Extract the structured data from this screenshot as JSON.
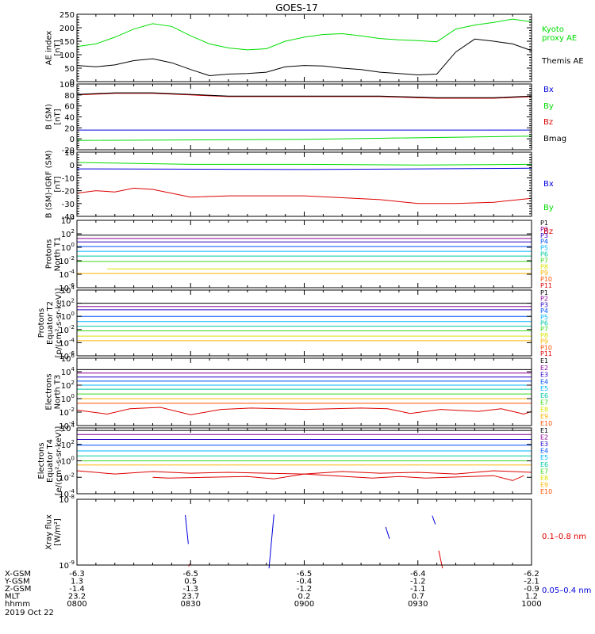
{
  "title": "GOES-17",
  "date_label": "2019 Oct 22",
  "colors": {
    "black": "#000000",
    "green": "#00dd00",
    "blue": "#0000dd",
    "red": "#dd0000",
    "p1": "#000000",
    "p2": "#8a0096",
    "p3": "#2a00c8",
    "p4": "#0050ff",
    "p5": "#00b4ff",
    "p6": "#00c8a0",
    "p7": "#38d81a",
    "p8": "#d8e400",
    "p9": "#ffb400",
    "p10": "#ff5000",
    "p11": "#dd0000"
  },
  "time_axis": {
    "ticks": [
      "0800",
      "0830",
      "0900",
      "0930",
      "1000"
    ]
  },
  "ephemeris": {
    "rows": [
      {
        "label": "X-GSM",
        "values": [
          "-6.3",
          "-6.5",
          "-6.5",
          "-6.4",
          "-6.2"
        ]
      },
      {
        "label": "Y-GSM",
        "values": [
          "1.3",
          "0.5",
          "-0.4",
          "-1.2",
          "-2.1"
        ]
      },
      {
        "label": "Z-GSM",
        "values": [
          "-1.4",
          "-1.3",
          "-1.2",
          "-1.1",
          "-0.9"
        ]
      },
      {
        "label": "MLT",
        "values": [
          "23.2",
          "23.7",
          "0.2",
          "0.7",
          "1.2"
        ]
      },
      {
        "label": "hhmm",
        "values": [
          "0800",
          "0830",
          "0900",
          "0930",
          "1000"
        ]
      }
    ]
  },
  "chart_data": [
    {
      "type": "line",
      "id": "ae",
      "ylabel": [
        "AE index",
        "[nT]"
      ],
      "ylim": [
        0,
        250
      ],
      "scale": "linear",
      "yticks": [
        0,
        50,
        100,
        150,
        200,
        250
      ],
      "series": [
        {
          "name": "Kyoto proxy AE",
          "color": "green",
          "x": [
            0,
            5,
            10,
            15,
            20,
            25,
            30,
            35,
            40,
            45,
            50,
            55,
            60,
            65,
            70,
            75,
            80,
            85,
            90,
            95,
            100,
            105,
            110,
            115,
            120
          ],
          "y": [
            130,
            140,
            165,
            195,
            215,
            205,
            170,
            140,
            125,
            118,
            122,
            150,
            165,
            175,
            178,
            170,
            160,
            155,
            152,
            148,
            195,
            210,
            220,
            232,
            222
          ]
        },
        {
          "name": "Themis AE",
          "color": "black",
          "x": [
            0,
            5,
            10,
            15,
            20,
            25,
            30,
            35,
            40,
            45,
            50,
            55,
            60,
            65,
            70,
            75,
            80,
            85,
            90,
            95,
            100,
            105,
            110,
            115,
            120
          ],
          "y": [
            60,
            55,
            62,
            78,
            85,
            70,
            45,
            22,
            28,
            30,
            35,
            55,
            60,
            58,
            50,
            45,
            35,
            30,
            25,
            28,
            110,
            158,
            150,
            140,
            115
          ]
        }
      ]
    },
    {
      "type": "line",
      "id": "bsm",
      "ylabel": [
        "B (SM)",
        "[nT]"
      ],
      "ylim": [
        -20,
        100
      ],
      "scale": "linear",
      "yticks": [
        -20,
        0,
        20,
        40,
        60,
        80,
        100
      ],
      "series": [
        {
          "name": "Bx",
          "color": "blue",
          "x": [
            0,
            60,
            120
          ],
          "y": [
            16,
            16,
            16
          ]
        },
        {
          "name": "By",
          "color": "green",
          "x": [
            0,
            60,
            120
          ],
          "y": [
            -3,
            -1,
            5
          ]
        },
        {
          "name": "Bz",
          "color": "red",
          "x": [
            0,
            10,
            20,
            30,
            40,
            60,
            80,
            95,
            110,
            120
          ],
          "y": [
            80,
            83,
            83,
            80,
            77,
            77,
            77,
            74,
            74,
            77
          ]
        },
        {
          "name": "Bmag",
          "color": "black",
          "x": [
            0,
            10,
            20,
            30,
            40,
            60,
            80,
            95,
            110,
            120
          ],
          "y": [
            81,
            84,
            84,
            81,
            78,
            78,
            78,
            75,
            75,
            78
          ]
        }
      ]
    },
    {
      "type": "line",
      "id": "bigrf",
      "ylabel": [
        "B (SM)-IGRF (SM)",
        "[nT]"
      ],
      "ylim": [
        -40,
        10
      ],
      "scale": "linear",
      "yticks": [
        -40,
        -30,
        -20,
        -10,
        0,
        10
      ],
      "series": [
        {
          "name": "Bx",
          "color": "blue",
          "x": [
            0,
            60,
            120
          ],
          "y": [
            -3,
            -3.5,
            -2.5
          ]
        },
        {
          "name": "By",
          "color": "green",
          "x": [
            0,
            30,
            60,
            90,
            120
          ],
          "y": [
            2,
            0.5,
            0.5,
            0,
            0.5
          ]
        },
        {
          "name": "Bz",
          "color": "red",
          "x": [
            0,
            5,
            10,
            15,
            20,
            30,
            40,
            60,
            80,
            90,
            100,
            110,
            120
          ],
          "y": [
            -22,
            -20,
            -21,
            -18,
            -19,
            -25,
            -24,
            -24,
            -27,
            -30,
            -30,
            -29,
            -26
          ]
        }
      ]
    },
    {
      "type": "line",
      "id": "protons_t1",
      "ylabel": [
        "Protons",
        "North T1"
      ],
      "ylim_exp": [
        -6,
        4
      ],
      "scale": "log",
      "ytick_exps": [
        -6,
        -4,
        -2,
        0,
        2,
        4
      ],
      "series": [
        {
          "name": "P1",
          "color": "p1",
          "x": [
            0,
            120
          ],
          "y_exp": [
            1.8,
            1.8
          ]
        },
        {
          "name": "P2",
          "color": "p2",
          "x": [
            0,
            120
          ],
          "y_exp": [
            1.3,
            1.3
          ]
        },
        {
          "name": "P3",
          "color": "p3",
          "x": [
            0,
            120
          ],
          "y_exp": [
            0.8,
            0.8
          ]
        },
        {
          "name": "P4",
          "color": "p4",
          "x": [
            0,
            120
          ],
          "y_exp": [
            0.1,
            0.1
          ]
        },
        {
          "name": "P5",
          "color": "p5",
          "x": [
            0,
            120
          ],
          "y_exp": [
            -0.6,
            -0.6
          ]
        },
        {
          "name": "P6",
          "color": "p6",
          "x": [
            0,
            120
          ],
          "y_exp": [
            -1.3,
            -1.3
          ]
        },
        {
          "name": "P7",
          "color": "p7",
          "x": [
            0,
            120
          ],
          "y_exp": [
            -2.1,
            -2.1
          ]
        },
        {
          "name": "P8",
          "color": "p8",
          "x": [
            8,
            120
          ],
          "y_exp": [
            -3.2,
            -3.2
          ]
        },
        {
          "name": "P9",
          "color": "p9",
          "x": [
            0,
            120
          ],
          "y_exp": [
            -3.9,
            -3.9
          ]
        }
      ],
      "legend": [
        "P1",
        "P2",
        "P3",
        "P4",
        "P5",
        "P6",
        "P7",
        "P8",
        "P9",
        "P10",
        "P11"
      ]
    },
    {
      "type": "line",
      "id": "protons_t2",
      "ylabel": [
        "Protons",
        "Equator T2",
        "[p/(cm²-s-sr-keV)]"
      ],
      "ylim_exp": [
        -6,
        4
      ],
      "scale": "log",
      "ytick_exps": [
        -6,
        -4,
        -2,
        0,
        2,
        4
      ],
      "series": [
        {
          "name": "P1",
          "color": "p1",
          "x": [
            0,
            120
          ],
          "y_exp": [
            2.0,
            2.0
          ]
        },
        {
          "name": "P2",
          "color": "p2",
          "x": [
            0,
            120
          ],
          "y_exp": [
            1.5,
            1.5
          ]
        },
        {
          "name": "P3",
          "color": "p3",
          "x": [
            0,
            120
          ],
          "y_exp": [
            1.0,
            1.0
          ]
        },
        {
          "name": "P4",
          "color": "p4",
          "x": [
            0,
            120
          ],
          "y_exp": [
            0.0,
            0.0
          ]
        },
        {
          "name": "P5",
          "color": "p5",
          "x": [
            0,
            120
          ],
          "y_exp": [
            -0.8,
            -0.8
          ]
        },
        {
          "name": "P6",
          "color": "p6",
          "x": [
            0,
            120
          ],
          "y_exp": [
            -1.5,
            -1.5
          ]
        },
        {
          "name": "P7",
          "color": "p7",
          "x": [
            0,
            120
          ],
          "y_exp": [
            -2.2,
            -2.2
          ]
        },
        {
          "name": "P8",
          "color": "p8",
          "x": [
            0,
            120
          ],
          "y_exp": [
            -3.0,
            -3.0
          ]
        },
        {
          "name": "P9",
          "color": "p9",
          "x": [
            0,
            120
          ],
          "y_exp": [
            -3.7,
            -3.7
          ]
        }
      ],
      "legend": [
        "P1",
        "P2",
        "P3",
        "P4",
        "P5",
        "P6",
        "P7",
        "P8",
        "P9",
        "P10",
        "P11"
      ]
    },
    {
      "type": "line",
      "id": "electrons_t3",
      "ylabel": [
        "Electrons",
        "North T3"
      ],
      "ylim_exp": [
        -4,
        6
      ],
      "scale": "log",
      "ytick_exps": [
        -4,
        -2,
        0,
        2,
        4,
        6
      ],
      "series": [
        {
          "name": "E1",
          "color": "p1",
          "x": [
            0,
            120
          ],
          "y_exp": [
            4.3,
            4.3
          ]
        },
        {
          "name": "E2",
          "color": "p2",
          "x": [
            0,
            120
          ],
          "y_exp": [
            3.8,
            3.8
          ]
        },
        {
          "name": "E3",
          "color": "p3",
          "x": [
            0,
            120
          ],
          "y_exp": [
            3.2,
            3.2
          ]
        },
        {
          "name": "E4",
          "color": "p4",
          "x": [
            0,
            120
          ],
          "y_exp": [
            2.6,
            2.6
          ]
        },
        {
          "name": "E5",
          "color": "p5",
          "x": [
            0,
            120
          ],
          "y_exp": [
            2.0,
            2.0
          ]
        },
        {
          "name": "E6",
          "color": "p6",
          "x": [
            0,
            120
          ],
          "y_exp": [
            1.4,
            1.4
          ]
        },
        {
          "name": "E7",
          "color": "p7",
          "x": [
            0,
            120
          ],
          "y_exp": [
            0.7,
            0.7
          ]
        },
        {
          "name": "E8",
          "color": "p9",
          "x": [
            0,
            120
          ],
          "y_exp": [
            0.0,
            0.0
          ]
        },
        {
          "name": "E9",
          "color": "p10",
          "x": [
            0,
            120
          ],
          "y_exp": [
            -0.7,
            -0.7
          ]
        },
        {
          "name": "E10",
          "color": "p11",
          "x": [
            0,
            8,
            14,
            22,
            30,
            38,
            46,
            60,
            75,
            82,
            88,
            96,
            106,
            112,
            118,
            120
          ],
          "y_exp": [
            -1.7,
            -2.3,
            -1.5,
            -1.3,
            -2.4,
            -1.6,
            -1.4,
            -1.6,
            -1.4,
            -1.5,
            -2.2,
            -1.6,
            -1.9,
            -1.5,
            -2.3,
            -1.9
          ]
        }
      ],
      "legend": [
        "E1",
        "E2",
        "E3",
        "E4",
        "E5",
        "E6",
        "E7",
        "E8",
        "E9",
        "E10"
      ]
    },
    {
      "type": "line",
      "id": "electrons_t4",
      "ylabel": [
        "Electrons",
        "Equator T4",
        "[e/(cm²-s-sr-keV)]"
      ],
      "ylim_exp": [
        -4,
        4
      ],
      "scale": "log",
      "ytick_exps": [
        -4,
        -2,
        0,
        2,
        4
      ],
      "series": [
        {
          "name": "E1",
          "color": "p1",
          "x": [
            0,
            120
          ],
          "y_exp": [
            3.7,
            3.7
          ]
        },
        {
          "name": "E2",
          "color": "p2",
          "x": [
            0,
            120
          ],
          "y_exp": [
            3.2,
            3.2
          ]
        },
        {
          "name": "E3",
          "color": "p3",
          "x": [
            0,
            120
          ],
          "y_exp": [
            2.6,
            2.6
          ]
        },
        {
          "name": "E4",
          "color": "p4",
          "x": [
            0,
            120
          ],
          "y_exp": [
            1.9,
            1.9
          ]
        },
        {
          "name": "E5",
          "color": "p5",
          "x": [
            0,
            120
          ],
          "y_exp": [
            1.2,
            1.2
          ]
        },
        {
          "name": "E6",
          "color": "p6",
          "x": [
            0,
            120
          ],
          "y_exp": [
            0.6,
            0.6
          ]
        },
        {
          "name": "E7",
          "color": "p7",
          "x": [
            0,
            120
          ],
          "y_exp": [
            0.0,
            0.0
          ]
        },
        {
          "name": "E8",
          "color": "p9",
          "x": [
            0,
            120
          ],
          "y_exp": [
            -0.5,
            -0.5
          ]
        },
        {
          "name": "E9",
          "color": "p11",
          "x": [
            0,
            10,
            20,
            30,
            40,
            50,
            60,
            70,
            80,
            90,
            100,
            110,
            120
          ],
          "y_exp": [
            -1.2,
            -1.6,
            -1.3,
            -1.5,
            -1.4,
            -1.5,
            -1.6,
            -1.3,
            -1.5,
            -1.4,
            -1.6,
            -1.2,
            -1.4
          ]
        },
        {
          "name": "E10",
          "color": "p11",
          "x": [
            20,
            24,
            45,
            52,
            60,
            78,
            85,
            92,
            110,
            115,
            118
          ],
          "y_exp": [
            -2.0,
            -2.1,
            -1.9,
            -2.2,
            -1.6,
            -2.1,
            -1.9,
            -2.1,
            -1.8,
            -2.4,
            -1.8
          ]
        }
      ],
      "legend": [
        "E1",
        "E2",
        "E3",
        "E4",
        "E5",
        "E6",
        "E7",
        "E8",
        "E9",
        "E10"
      ]
    },
    {
      "type": "line",
      "id": "xray",
      "ylabel": [
        "Xray flux",
        "[W/m²]"
      ],
      "ylim_exp": [
        -9,
        -8
      ],
      "scale": "log",
      "ytick_exps": [
        -9,
        -8
      ],
      "series": [
        {
          "name": "0.1–0.8 nm",
          "color": "red",
          "x": [
            29.5,
            29.8,
            95.5,
            96.5
          ],
          "y_exp": [
            -9.02,
            -8.98,
            -8.78,
            -9.05
          ]
        },
        {
          "name": "0.05–0.4 nm",
          "color": "blue",
          "x": [
            28.6,
            29.4,
            50.7,
            52.0,
            81.5,
            82.5,
            93.8,
            94.6
          ],
          "y_exp": [
            -8.24,
            -8.68,
            -9.05,
            -8.23,
            -8.42,
            -8.6,
            -8.25,
            -8.38
          ]
        }
      ]
    }
  ]
}
